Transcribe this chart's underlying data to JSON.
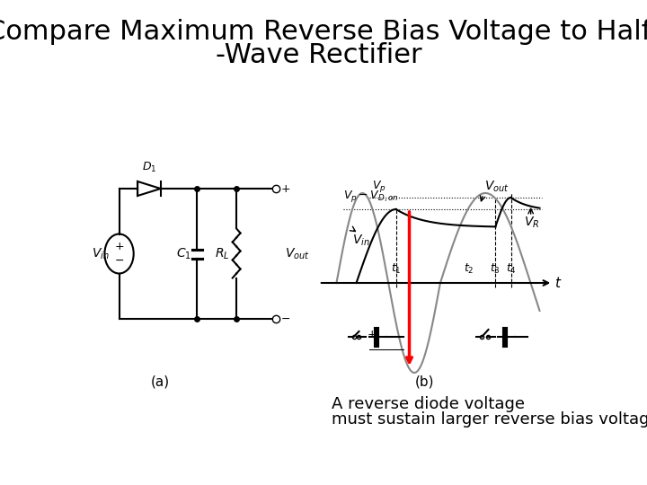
{
  "title_line1": "Compare Maximum Reverse Bias Voltage to Half",
  "title_line2": "-Wave Rectifier",
  "caption_line1": "A reverse diode voltage",
  "caption_line2": "must sustain larger reverse bias voltage",
  "bg_color": "#ffffff",
  "title_fontsize": 22,
  "caption_fontsize": 13,
  "title_color": "#000000",
  "caption_color": "#000000",
  "label_a": "(a)",
  "label_b": "(b)"
}
